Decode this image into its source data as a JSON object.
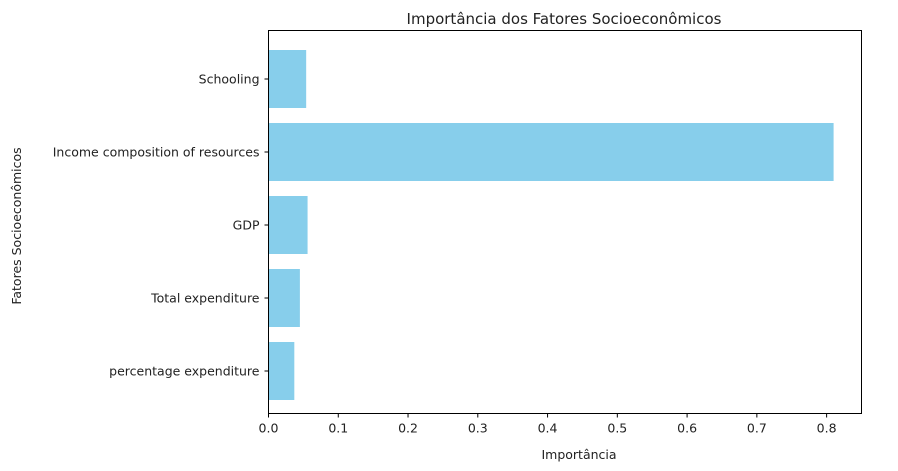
{
  "chart_data": {
    "type": "bar",
    "orientation": "horizontal",
    "title": "Importância dos Fatores Socioeconômicos",
    "xlabel": "Importância",
    "ylabel": "Fatores Socioeconômicos",
    "categories": [
      "Schooling",
      "Income composition of resources",
      "GDP",
      "Total expenditure",
      "percentage expenditure"
    ],
    "values": [
      0.054,
      0.81,
      0.056,
      0.045,
      0.037
    ],
    "xlim": [
      0,
      0.85
    ],
    "xticks": [
      "0.0",
      "0.1",
      "0.2",
      "0.3",
      "0.4",
      "0.5",
      "0.6",
      "0.7",
      "0.8"
    ],
    "bar_color": "#87CEEB",
    "grid": false
  }
}
